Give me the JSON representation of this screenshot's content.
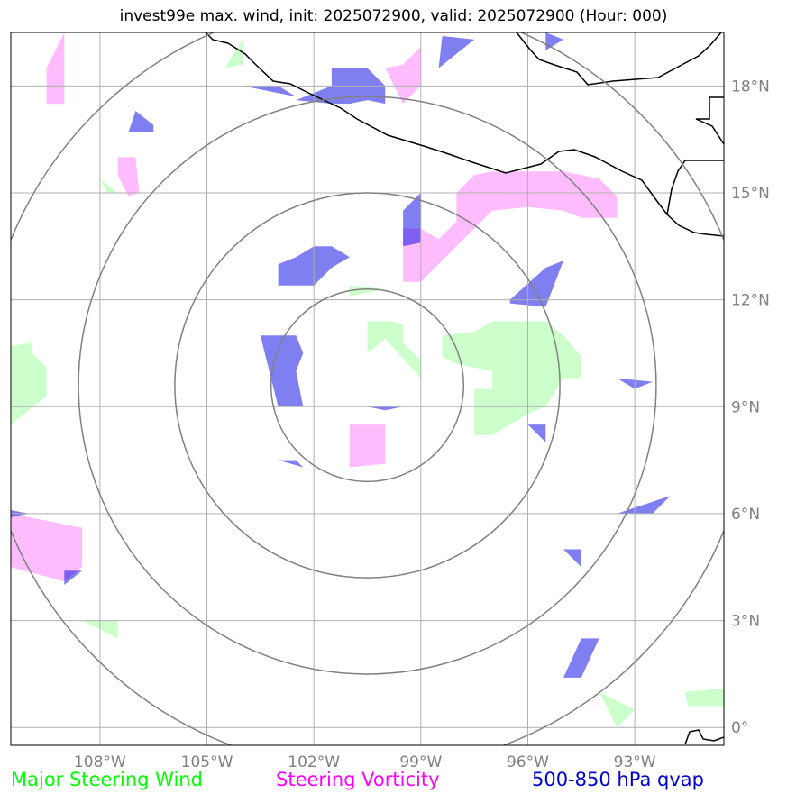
{
  "title": "invest99e max. wind, init: 2025072900, valid: 2025072900 (Hour: 000)",
  "map": {
    "lon_range": [
      -110.5,
      -90.5
    ],
    "lat_range": [
      -0.5,
      19.5
    ],
    "center": {
      "lon": -100.5,
      "lat": 9.6
    },
    "range_rings_deg": [
      2.7,
      5.4,
      8.1,
      10.8
    ],
    "lon_ticks": [
      -108,
      -105,
      -102,
      -99,
      -96,
      -93
    ],
    "lat_ticks": [
      0,
      3,
      6,
      9,
      12,
      15,
      18
    ],
    "lon_tick_labels": [
      "108°W",
      "105°W",
      "102°W",
      "99°W",
      "96°W",
      "93°W"
    ],
    "lat_tick_labels": [
      "0°",
      "3°N",
      "6°N",
      "9°N",
      "12°N",
      "15°N",
      "18°N"
    ],
    "grid": true
  },
  "colors": {
    "wind_fill": "#ccffcc",
    "vorticity_fill": "#ff99ff",
    "qvap_fill": "#0000e6",
    "grid": "#b0b0b0",
    "rings": "#808080",
    "coast": "#000000"
  },
  "legend": {
    "wind": {
      "label": "Major Steering Wind",
      "color": "#00ff00"
    },
    "vorticity": {
      "label": "Steering Vorticity",
      "color": "#ff00ff"
    },
    "qvap": {
      "label": "500-850 hPa qvap",
      "color": "#0000cc"
    }
  },
  "chart_data": {
    "type": "contour-map",
    "layers": [
      {
        "label": "Major Steering Wind",
        "polygons": [
          [
            [
              -104.5,
              18.5
            ],
            [
              -104.0,
              19.3
            ],
            [
              -104.0,
              18.6
            ]
          ],
          [
            [
              -110.5,
              10.7
            ],
            [
              -109.9,
              10.8
            ],
            [
              -109.9,
              10.5
            ],
            [
              -109.5,
              10.1
            ],
            [
              -109.5,
              9.3
            ],
            [
              -110.5,
              8.5
            ]
          ],
          [
            [
              -108.0,
              15.4
            ],
            [
              -107.8,
              15.0
            ],
            [
              -107.5,
              15.0
            ]
          ],
          [
            [
              -100.5,
              11.4
            ],
            [
              -99.8,
              11.4
            ],
            [
              -99.5,
              11.3
            ],
            [
              -99.5,
              10.8
            ],
            [
              -99.0,
              10.3
            ],
            [
              -99.0,
              9.8
            ],
            [
              -100.0,
              10.9
            ],
            [
              -100.5,
              10.5
            ]
          ],
          [
            [
              -98.4,
              11.0
            ],
            [
              -97.5,
              11.1
            ],
            [
              -97.0,
              11.4
            ],
            [
              -95.5,
              11.4
            ],
            [
              -95.0,
              11.0
            ],
            [
              -94.5,
              10.4
            ],
            [
              -94.5,
              9.8
            ],
            [
              -95.0,
              9.8
            ],
            [
              -95.5,
              9.0
            ],
            [
              -96.0,
              8.8
            ],
            [
              -97.0,
              8.2
            ],
            [
              -97.5,
              8.2
            ],
            [
              -97.5,
              9.5
            ],
            [
              -97.0,
              9.5
            ],
            [
              -97.0,
              10.0
            ],
            [
              -98.0,
              10.2
            ],
            [
              -98.4,
              10.4
            ]
          ],
          [
            [
              -94.0,
              1.0
            ],
            [
              -93.5,
              0.0
            ],
            [
              -93.0,
              0.5
            ]
          ],
          [
            [
              -91.6,
              1.0
            ],
            [
              -90.5,
              1.1
            ],
            [
              -90.5,
              0.6
            ],
            [
              -91.5,
              0.6
            ]
          ],
          [
            [
              -108.5,
              3.0
            ],
            [
              -107.5,
              3.0
            ],
            [
              -107.5,
              2.5
            ]
          ],
          [
            [
              -101.0,
              12.4
            ],
            [
              -100.0,
              12.3
            ],
            [
              -101.0,
              12.1
            ]
          ]
        ]
      },
      {
        "label": "Steering Vorticity",
        "polygons": [
          [
            [
              -109.5,
              18.5
            ],
            [
              -109.0,
              19.5
            ],
            [
              -109.0,
              17.5
            ],
            [
              -109.5,
              17.5
            ]
          ],
          [
            [
              -107.5,
              16.0
            ],
            [
              -107.0,
              16.0
            ],
            [
              -106.9,
              15.0
            ],
            [
              -107.2,
              14.9
            ],
            [
              -107.5,
              15.5
            ]
          ],
          [
            [
              -99.5,
              18.6
            ],
            [
              -99.0,
              19.1
            ],
            [
              -99.0,
              18.0
            ],
            [
              -99.5,
              17.5
            ],
            [
              -100.0,
              18.5
            ]
          ],
          [
            [
              -98.0,
              15.0
            ],
            [
              -97.5,
              15.5
            ],
            [
              -97.0,
              15.6
            ],
            [
              -95.0,
              15.6
            ],
            [
              -94.0,
              15.4
            ],
            [
              -93.5,
              14.9
            ],
            [
              -93.5,
              14.3
            ],
            [
              -94.5,
              14.3
            ],
            [
              -95.0,
              14.5
            ],
            [
              -96.0,
              14.6
            ],
            [
              -97.0,
              14.5
            ],
            [
              -97.5,
              14.0
            ],
            [
              -98.5,
              13.0
            ],
            [
              -99.0,
              12.5
            ],
            [
              -99.5,
              12.5
            ],
            [
              -99.5,
              14.0
            ],
            [
              -99.0,
              14.0
            ],
            [
              -98.5,
              13.7
            ],
            [
              -98.0,
              14.2
            ]
          ],
          [
            [
              -101.0,
              8.5
            ],
            [
              -100.0,
              8.5
            ],
            [
              -100.0,
              7.4
            ],
            [
              -101.0,
              7.3
            ]
          ],
          [
            [
              -110.5,
              6.0
            ],
            [
              -108.5,
              5.6
            ],
            [
              -108.5,
              4.5
            ],
            [
              -109.0,
              4.1
            ],
            [
              -110.5,
              4.5
            ]
          ]
        ]
      },
      {
        "label": "500-850 hPa qvap",
        "polygons": [
          [
            [
              -102.5,
              17.6
            ],
            [
              -101.5,
              18.0
            ],
            [
              -101.5,
              18.5
            ],
            [
              -100.5,
              18.5
            ],
            [
              -100.0,
              18.0
            ],
            [
              -100.0,
              17.5
            ],
            [
              -100.5,
              17.6
            ],
            [
              -101.0,
              17.5
            ],
            [
              -101.5,
              17.5
            ]
          ],
          [
            [
              -104.0,
              18.0
            ],
            [
              -103.0,
              18.0
            ],
            [
              -102.5,
              17.7
            ]
          ],
          [
            [
              -98.4,
              19.4
            ],
            [
              -97.5,
              19.3
            ],
            [
              -98.5,
              18.5
            ]
          ],
          [
            [
              -95.5,
              19.5
            ],
            [
              -95.0,
              19.3
            ],
            [
              -95.5,
              19.0
            ]
          ],
          [
            [
              -107.0,
              17.3
            ],
            [
              -106.5,
              16.9
            ],
            [
              -106.5,
              16.7
            ],
            [
              -107.2,
              16.7
            ]
          ],
          [
            [
              -103.0,
              13.0
            ],
            [
              -102.5,
              13.2
            ],
            [
              -102.0,
              13.5
            ],
            [
              -101.5,
              13.5
            ],
            [
              -101.0,
              13.2
            ],
            [
              -101.5,
              12.9
            ],
            [
              -102.0,
              12.4
            ],
            [
              -103.0,
              12.4
            ]
          ],
          [
            [
              -99.5,
              14.5
            ],
            [
              -99.0,
              15.0
            ],
            [
              -99.0,
              13.6
            ],
            [
              -99.5,
              13.5
            ]
          ],
          [
            [
              -96.5,
              12.0
            ],
            [
              -95.5,
              12.9
            ],
            [
              -95.0,
              13.1
            ],
            [
              -95.5,
              11.8
            ],
            [
              -96.5,
              11.9
            ]
          ],
          [
            [
              -103.5,
              11.0
            ],
            [
              -102.5,
              11.0
            ],
            [
              -102.3,
              10.5
            ],
            [
              -102.5,
              10.0
            ],
            [
              -102.3,
              9.0
            ],
            [
              -103.0,
              9.0
            ]
          ],
          [
            [
              -93.5,
              9.8
            ],
            [
              -92.5,
              9.7
            ],
            [
              -93.0,
              9.5
            ]
          ],
          [
            [
              -100.5,
              9.0
            ],
            [
              -99.5,
              9.0
            ],
            [
              -100.0,
              8.9
            ]
          ],
          [
            [
              -103.0,
              7.5
            ],
            [
              -102.3,
              7.3
            ],
            [
              -102.5,
              7.5
            ]
          ],
          [
            [
              -110.5,
              6.1
            ],
            [
              -110.0,
              6.0
            ],
            [
              -110.5,
              5.9
            ]
          ],
          [
            [
              -109.0,
              4.4
            ],
            [
              -108.5,
              4.4
            ],
            [
              -109.0,
              4.0
            ]
          ],
          [
            [
              -96.0,
              8.5
            ],
            [
              -95.5,
              8.0
            ],
            [
              -95.5,
              8.5
            ]
          ],
          [
            [
              -93.5,
              6.0
            ],
            [
              -92.0,
              6.5
            ],
            [
              -92.5,
              6.0
            ]
          ],
          [
            [
              -95.0,
              5.0
            ],
            [
              -94.5,
              5.0
            ],
            [
              -94.5,
              4.5
            ]
          ],
          [
            [
              -94.5,
              2.5
            ],
            [
              -94.0,
              2.5
            ],
            [
              -94.5,
              1.4
            ],
            [
              -95.0,
              1.4
            ]
          ]
        ]
      }
    ]
  }
}
